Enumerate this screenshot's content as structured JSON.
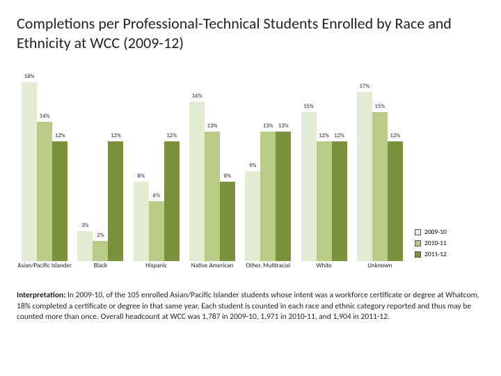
{
  "title": "Completions per Professional-Technical Students Enrolled by Race and Ethnicity at WCC (2009-12)",
  "chart": {
    "type": "grouped-bar",
    "max_pct": 20,
    "series": [
      {
        "key": "2009-10",
        "label": "2009-10",
        "color": "#e4ebd3"
      },
      {
        "key": "2010-11",
        "label": "2010-11",
        "color": "#b8cc87"
      },
      {
        "key": "2011-12",
        "label": "2011-12",
        "color": "#79923b"
      }
    ],
    "categories": [
      {
        "label": "Asian/Pacific Islander",
        "values": [
          18,
          14,
          12
        ]
      },
      {
        "label": "Black",
        "values": [
          3,
          2,
          12
        ]
      },
      {
        "label": "Hispanic",
        "values": [
          8,
          6,
          12
        ]
      },
      {
        "label": "Native American",
        "values": [
          16,
          13,
          8
        ]
      },
      {
        "label": "Other, Multiracial",
        "values": [
          9,
          13,
          13
        ]
      },
      {
        "label": "White",
        "values": [
          15,
          12,
          12
        ]
      },
      {
        "label": "Unknown",
        "values": [
          17,
          15,
          12
        ]
      }
    ],
    "label_fontsize": 9,
    "value_label_fontsize": 8.5,
    "background_color": "#ffffff"
  },
  "interpretation_label": "Interpretation:",
  "interpretation_text": " In 2009-10, of the 105 enrolled Asian/Pacific Islander students whose intent was a workforce certificate or degree at Whatcom, 18% completed a certificate or degree in that same year. Each student is counted in each race and ethnic category reported and thus may be counted more than once. Overall headcount at WCC was 1,787 in 2009-10, 1,971 in 2010-11, and 1,904 in 2011-12."
}
